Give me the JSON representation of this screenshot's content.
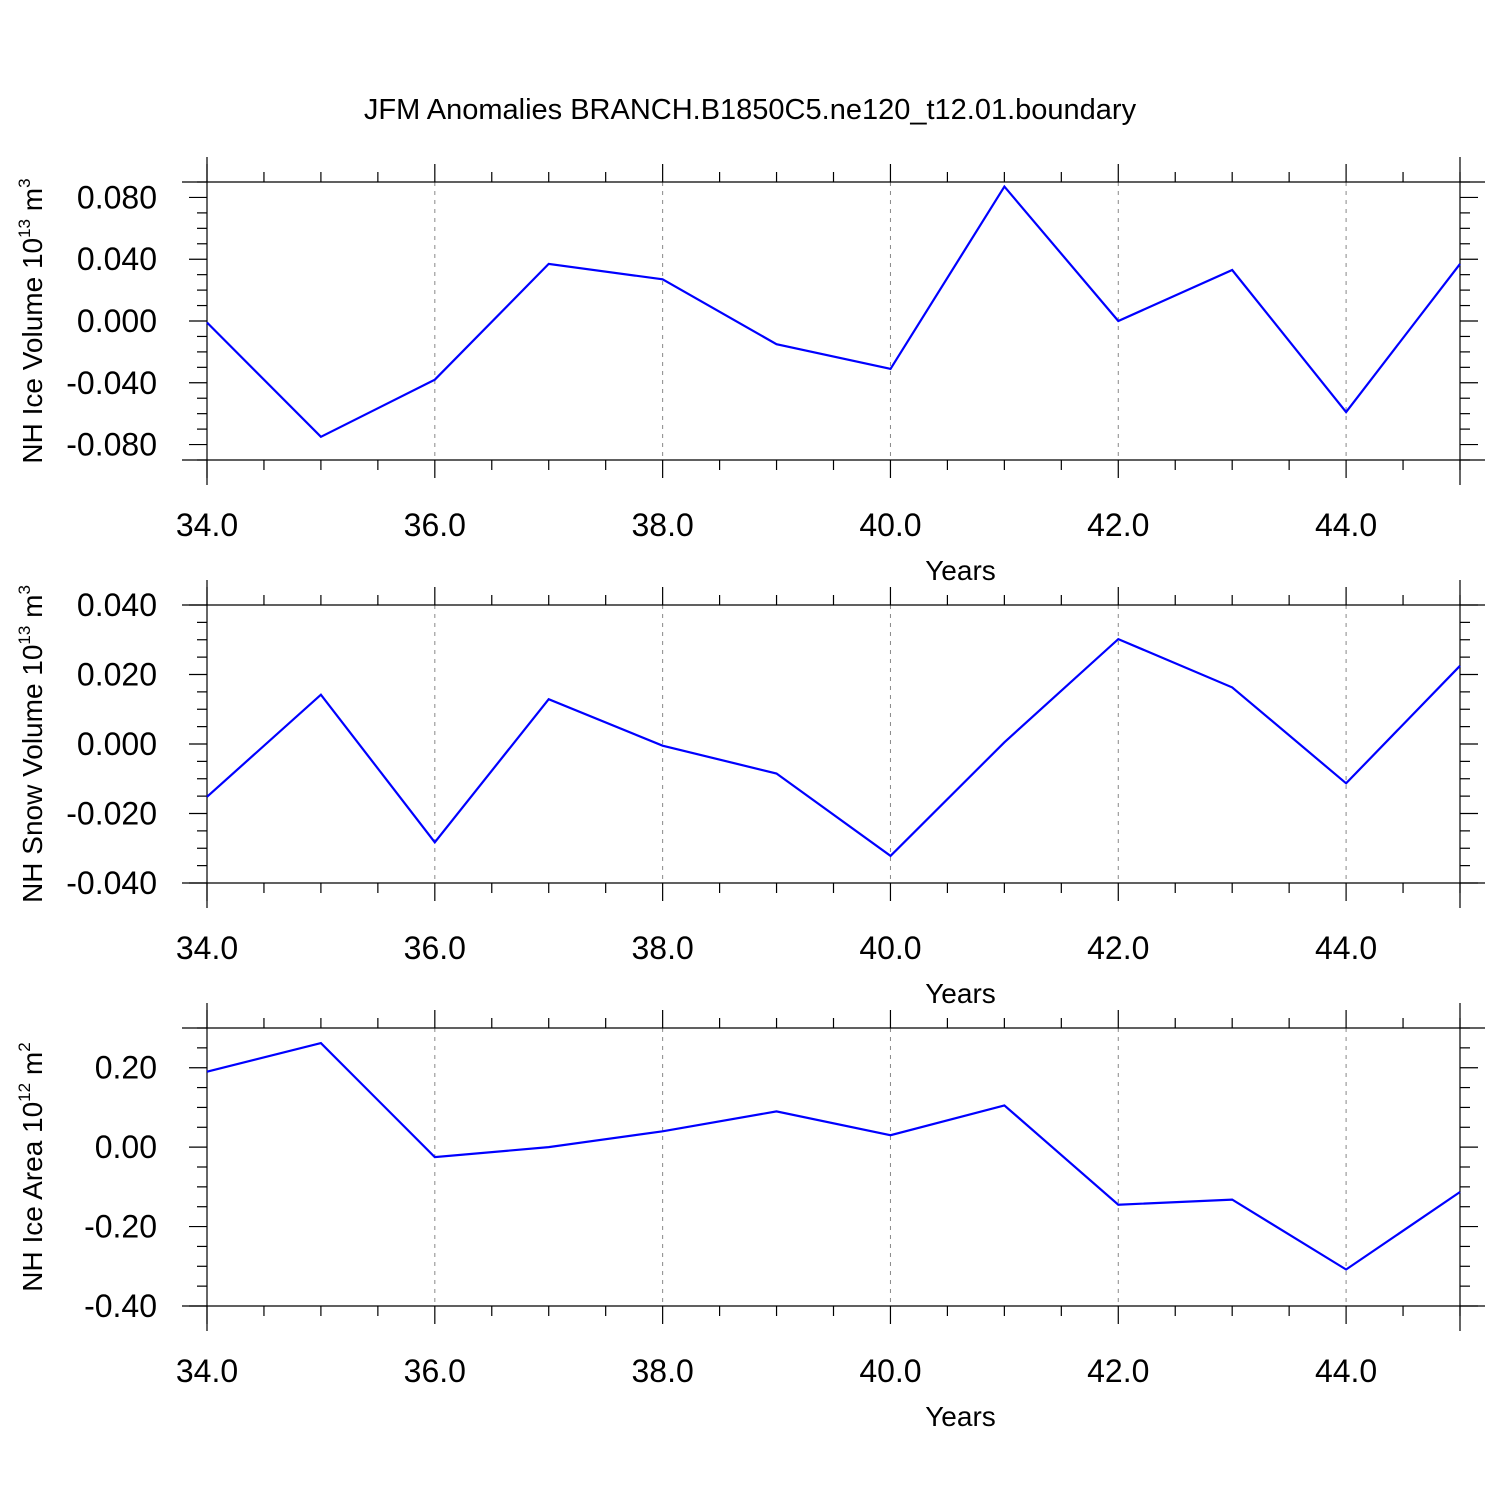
{
  "figure_title": "JFM Anomalies BRANCH.B1850C5.ne120_t12.01.boundary",
  "line_color": "#0000ff",
  "chart_data": [
    {
      "type": "line",
      "xlabel": "Years",
      "ylabel": {
        "base": "NH Ice Volume 10",
        "sup": "13",
        "mid": " m",
        "sup2": "3"
      },
      "xlim": [
        34,
        45
      ],
      "ylim": [
        -0.09,
        0.09
      ],
      "xticks": [
        34,
        36,
        38,
        40,
        42,
        44
      ],
      "xtick_labels": [
        "34.0",
        "36.0",
        "38.0",
        "40.0",
        "42.0",
        "44.0"
      ],
      "yticks": [
        -0.08,
        -0.04,
        0.0,
        0.04,
        0.08
      ],
      "ytick_labels": [
        "-0.080",
        "-0.040",
        "0.000",
        "0.040",
        "0.080"
      ],
      "x": [
        34,
        35,
        36,
        37,
        38,
        39,
        40,
        41,
        42,
        43,
        44,
        45
      ],
      "y": [
        -0.001,
        -0.075,
        -0.038,
        0.037,
        0.027,
        -0.015,
        -0.031,
        0.087,
        0.0,
        0.033,
        -0.059,
        0.037
      ]
    },
    {
      "type": "line",
      "xlabel": "Years",
      "ylabel": {
        "base": "NH Snow Volume 10",
        "sup": "13",
        "mid": " m",
        "sup2": "3"
      },
      "xlim": [
        34,
        45
      ],
      "ylim": [
        -0.04,
        0.04
      ],
      "xticks": [
        34,
        36,
        38,
        40,
        42,
        44
      ],
      "xtick_labels": [
        "34.0",
        "36.0",
        "38.0",
        "40.0",
        "42.0",
        "44.0"
      ],
      "yticks": [
        -0.04,
        -0.02,
        0.0,
        0.02,
        0.04
      ],
      "ytick_labels": [
        "-0.040",
        "-0.020",
        "0.000",
        "0.020",
        "0.040"
      ],
      "x": [
        34,
        35,
        36,
        37,
        38,
        39,
        40,
        41,
        42,
        43,
        44,
        45
      ],
      "y": [
        -0.0152,
        0.0142,
        -0.0283,
        0.0129,
        -0.0005,
        -0.0085,
        -0.0322,
        0.0005,
        0.0302,
        0.0163,
        -0.0113,
        0.0225
      ]
    },
    {
      "type": "line",
      "xlabel": "Years",
      "ylabel": {
        "base": "NH Ice Area 10",
        "sup": "12",
        "mid": " m",
        "sup2": "2"
      },
      "xlim": [
        34,
        45
      ],
      "ylim": [
        -0.4,
        0.3
      ],
      "xticks": [
        34,
        36,
        38,
        40,
        42,
        44
      ],
      "xtick_labels": [
        "34.0",
        "36.0",
        "38.0",
        "40.0",
        "42.0",
        "44.0"
      ],
      "yticks": [
        -0.4,
        -0.2,
        0.0,
        0.2
      ],
      "ytick_labels": [
        "-0.40",
        "-0.20",
        "0.00",
        "0.20"
      ],
      "x": [
        34,
        35,
        36,
        37,
        38,
        39,
        40,
        41,
        42,
        43,
        44,
        45
      ],
      "y": [
        0.19,
        0.262,
        -0.025,
        0.0,
        0.04,
        0.09,
        0.03,
        0.105,
        -0.145,
        -0.132,
        -0.308,
        -0.113
      ]
    }
  ]
}
